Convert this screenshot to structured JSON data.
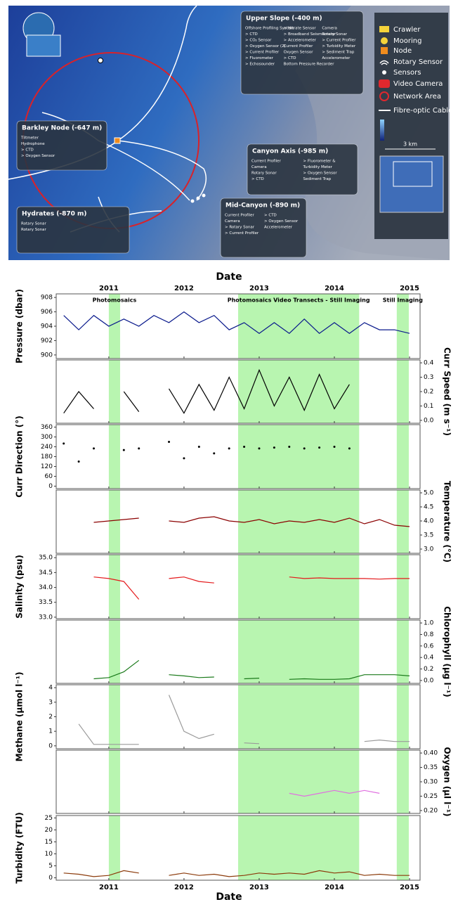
{
  "map": {
    "legend": [
      "Crawler",
      "Mooring",
      "Node",
      "Rotary Sensor",
      "Sensors",
      "Video Camera",
      "Network Area",
      "Fibre-optic Cable"
    ],
    "scale": "3 km",
    "sites": [
      {
        "name": "Upper Slope (-400 m)",
        "items": [
          "Offshore Profiling System",
          "> CTD",
          "> CO₂ Sensor",
          "> Oxygen Sensor (2)",
          "> Current Profiler",
          "> Fluorometer",
          "> Echosounder",
          "> Nitrate Sensor",
          "> Broadband Seismometer",
          "> Accelerometer",
          "Current Profiler",
          "Oxygen Sensor",
          "> CTD",
          "Bottom Pressure Recorder",
          "Camera",
          "Rotary Sonar",
          "> Current Profiler",
          "> Turbidity Meter",
          "> Sediment Trap",
          "Accelerometer"
        ]
      },
      {
        "name": "Barkley Node (-647 m)",
        "items": [
          "Tiltmeter",
          "Hydrophone",
          "> CTD",
          "> Oxygen Sensor"
        ]
      },
      {
        "name": "Canyon Axis (-985 m)",
        "items": [
          "Current Profiler",
          "Camera",
          "Rotary Sonar",
          "> CTD",
          "> Fluorometer &",
          "Turbidity Meter",
          "> Oxygen Sensor",
          "Sediment Trap"
        ]
      },
      {
        "name": "Hydrates (-870 m)",
        "items": [
          "Rotary Sonar",
          "Rotary Sonar"
        ]
      },
      {
        "name": "Mid-Canyon (-890 m)",
        "items": [
          "Current Profiler",
          "Camera",
          "> Rotary Sonar",
          "> Current Profiler",
          "> CTD",
          "> Oxygen Sensor",
          "Accelerometer"
        ]
      }
    ]
  },
  "timeline": {
    "xlabel": "Date",
    "xlim": [
      2010.3,
      2015.14
    ],
    "xticks": [
      2011,
      2012,
      2013,
      2014,
      2015
    ],
    "x": [
      2010.4,
      2010.6,
      2010.8,
      2011.0,
      2011.2,
      2011.4,
      2011.6,
      2011.8,
      2012.0,
      2012.2,
      2012.4,
      2012.6,
      2012.8,
      2013.0,
      2013.2,
      2013.4,
      2013.6,
      2013.8,
      2014.0,
      2014.2,
      2014.4,
      2014.6,
      2014.8,
      2015.0
    ],
    "shaded_periods": [
      {
        "start": 2011.0,
        "end": 2011.15,
        "label": "Photomosaics"
      },
      {
        "start": 2012.72,
        "end": 2014.33,
        "label": "Photomosaics Video Transects - Still Imaging"
      },
      {
        "start": 2014.83,
        "end": 2014.99,
        "label": "Still Imaging"
      }
    ],
    "shade_color": "#b8f5b0"
  },
  "chart_data": [
    {
      "type": "line",
      "ylabel": "Pressure (dbar)",
      "yaxis": "left",
      "color": "#0a1a8c",
      "ylim": [
        899.5,
        908.5
      ],
      "yticks": [
        900,
        902,
        904,
        906,
        908
      ],
      "values": [
        905.5,
        903.5,
        905.5,
        904,
        905,
        904,
        905.5,
        904.5,
        906,
        904.5,
        905.5,
        903.5,
        904.5,
        903,
        904.5,
        903,
        905,
        903,
        904.5,
        903,
        904.5,
        903.5,
        903.5,
        903
      ]
    },
    {
      "type": "line",
      "ylabel": "Curr Speed (m s⁻¹)",
      "yaxis": "right",
      "color": "#000000",
      "ylim": [
        -0.02,
        0.42
      ],
      "yticks": [
        {
          "value": 0,
          "label": "0.0"
        },
        {
          "value": 0.1,
          "label": "0.1"
        },
        {
          "value": 0.2,
          "label": "0.2"
        },
        {
          "value": 0.3,
          "label": "0.3"
        },
        {
          "value": 0.4,
          "label": "0.4"
        }
      ],
      "values": [
        0.05,
        0.2,
        0.08,
        null,
        0.2,
        0.06,
        null,
        0.22,
        0.05,
        0.25,
        0.07,
        0.3,
        0.08,
        0.35,
        0.1,
        0.3,
        0.07,
        0.32,
        0.08,
        0.25,
        null,
        null,
        null,
        null
      ]
    },
    {
      "type": "scatter",
      "ylabel": "Curr Direction (°)",
      "yaxis": "left",
      "color": "#000000",
      "ylim": [
        -15,
        375
      ],
      "yticks": [
        0,
        60,
        120,
        180,
        240,
        300,
        360
      ],
      "values": [
        260,
        150,
        230,
        null,
        220,
        230,
        null,
        270,
        170,
        240,
        200,
        230,
        240,
        230,
        235,
        240,
        230,
        235,
        240,
        230,
        null,
        null,
        null,
        null
      ]
    },
    {
      "type": "line",
      "ylabel": "Temperature (°C)",
      "yaxis": "right",
      "color": "#8b0000",
      "ylim": [
        2.85,
        5.1
      ],
      "yticks": [
        {
          "value": 3,
          "label": "3.0"
        },
        3.5,
        {
          "value": 4,
          "label": "4.0"
        },
        4.5,
        {
          "value": 5,
          "label": "5.0"
        }
      ],
      "values": [
        null,
        null,
        3.95,
        4.0,
        4.05,
        4.1,
        null,
        4.0,
        3.95,
        4.1,
        4.15,
        4.0,
        3.95,
        4.05,
        3.9,
        4.0,
        3.95,
        4.05,
        3.95,
        4.1,
        3.9,
        4.05,
        3.85,
        3.8
      ]
    },
    {
      "type": "line",
      "ylabel": "Salinity (psu)",
      "yaxis": "left",
      "color": "#e41a1c",
      "ylim": [
        32.95,
        35.1
      ],
      "yticks": [
        {
          "value": 33,
          "label": "33.0"
        },
        33.5,
        {
          "value": 34,
          "label": "34.0"
        },
        34.5,
        {
          "value": 35,
          "label": "35.0"
        }
      ],
      "values": [
        null,
        null,
        34.35,
        34.3,
        34.2,
        33.6,
        null,
        34.3,
        34.35,
        34.2,
        34.15,
        null,
        null,
        null,
        null,
        34.35,
        34.3,
        34.32,
        34.3,
        34.3,
        34.3,
        34.28,
        34.3,
        34.3
      ]
    },
    {
      "type": "line",
      "ylabel": "Chlorophyll (µg l⁻¹)",
      "yaxis": "right",
      "color": "#1a7a1a",
      "ylim": [
        -0.05,
        1.05
      ],
      "yticks": [
        {
          "value": 0,
          "label": "0.0"
        },
        0.2,
        0.4,
        0.6,
        0.8,
        {
          "value": 1,
          "label": "1.0"
        }
      ],
      "values": [
        null,
        null,
        0.03,
        0.05,
        0.15,
        0.35,
        null,
        0.1,
        0.08,
        0.05,
        0.06,
        null,
        0.03,
        0.04,
        null,
        0.02,
        0.03,
        0.02,
        0.02,
        0.03,
        0.1,
        0.1,
        0.1,
        0.08
      ]
    },
    {
      "type": "line",
      "ylabel": "Methane (µmol l⁻¹)",
      "yaxis": "left",
      "color": "#9a9a9a",
      "ylim": [
        -0.2,
        4.2
      ],
      "yticks": [
        0,
        1,
        2,
        3,
        4
      ],
      "values": [
        null,
        1.5,
        0.1,
        0.1,
        0.1,
        0.1,
        null,
        3.5,
        1.0,
        0.5,
        0.8,
        null,
        0.2,
        0.15,
        null,
        null,
        null,
        null,
        null,
        null,
        0.3,
        0.4,
        0.3,
        0.3
      ]
    },
    {
      "type": "line",
      "ylabel": "Oxygen (µl l⁻¹)",
      "yaxis": "right",
      "color": "#e070e0",
      "ylim": [
        0.19,
        0.41
      ],
      "yticks": [
        {
          "value": 0.2,
          "label": "0.20"
        },
        0.25,
        {
          "value": 0.3,
          "label": "0.30"
        },
        0.35,
        {
          "value": 0.4,
          "label": "0.40"
        }
      ],
      "values": [
        null,
        null,
        null,
        null,
        null,
        null,
        null,
        null,
        null,
        null,
        null,
        null,
        null,
        null,
        null,
        0.26,
        0.25,
        0.26,
        0.27,
        0.26,
        0.27,
        0.26,
        null,
        null
      ]
    },
    {
      "type": "line",
      "ylabel": "Turbidity (FTU)",
      "yaxis": "left",
      "color": "#8b3a0a",
      "ylim": [
        -1,
        26
      ],
      "yticks": [
        0,
        5,
        10,
        15,
        20,
        25
      ],
      "values": [
        2,
        1.5,
        0.5,
        1,
        3,
        2,
        null,
        1,
        2,
        1,
        1.5,
        0.5,
        1,
        2,
        1.5,
        2,
        1.5,
        3,
        2,
        2.5,
        1,
        1.5,
        1,
        1
      ]
    }
  ]
}
